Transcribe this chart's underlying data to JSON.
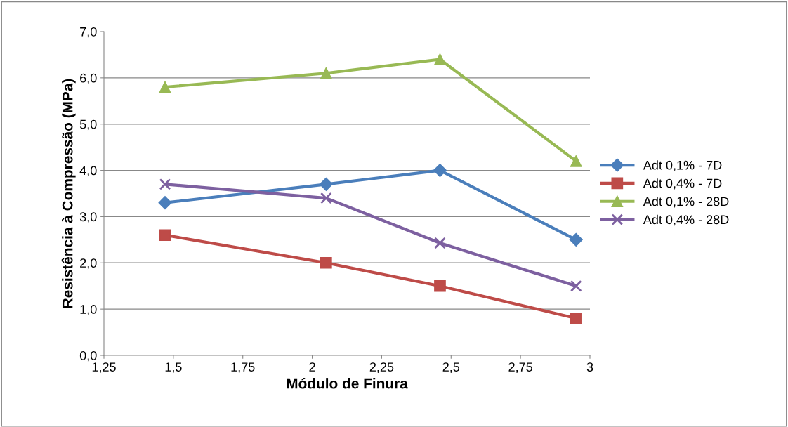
{
  "chart_data": {
    "type": "line",
    "xlabel": "Módulo de Finura",
    "ylabel": "Resistência à Compressão (MPa)",
    "xlim": [
      1.25,
      3
    ],
    "xticks": [
      {
        "value": 1.25,
        "label": "1,25"
      },
      {
        "value": 1.5,
        "label": "1,5"
      },
      {
        "value": 1.75,
        "label": "1,75"
      },
      2,
      {
        "value": 2.25,
        "label": "2,25"
      },
      {
        "value": 2.5,
        "label": "2,5"
      },
      {
        "value": 2.75,
        "label": "2,75"
      },
      3
    ],
    "ylim": [
      0,
      7
    ],
    "yticks": [
      {
        "value": 0,
        "label": "0,0"
      },
      {
        "value": 1,
        "label": "1,0"
      },
      {
        "value": 2,
        "label": "2,0"
      },
      {
        "value": 3,
        "label": "3,0"
      },
      {
        "value": 4,
        "label": "4,0"
      },
      {
        "value": 5,
        "label": "5,0"
      },
      {
        "value": 6,
        "label": "6,0"
      },
      {
        "value": 7,
        "label": "7,0"
      }
    ],
    "grid": "y",
    "legend": "right",
    "line_style": "solid",
    "series": [
      {
        "name": "Adt 0,1% - 7D",
        "color": "#4a7ebb",
        "marker": "diamond",
        "x": [
          1.47,
          2.05,
          2.46,
          2.95
        ],
        "values": [
          3.3,
          3.7,
          4.0,
          2.5
        ]
      },
      {
        "name": "Adt 0,4% - 7D",
        "color": "#be4b48",
        "marker": "square",
        "x": [
          1.47,
          2.05,
          2.46,
          2.95
        ],
        "values": [
          2.6,
          2.0,
          1.5,
          0.8
        ]
      },
      {
        "name": "Adt 0,1% - 28D",
        "color": "#98b954",
        "marker": "triangle",
        "x": [
          1.47,
          2.05,
          2.46,
          2.95
        ],
        "values": [
          5.8,
          6.1,
          6.4,
          4.2
        ]
      },
      {
        "name": "Adt 0,4% - 28D",
        "color": "#7d60a0",
        "marker": "cross",
        "x": [
          1.47,
          2.05,
          2.46,
          2.95
        ],
        "values": [
          3.7,
          3.4,
          2.43,
          1.5
        ]
      }
    ]
  }
}
